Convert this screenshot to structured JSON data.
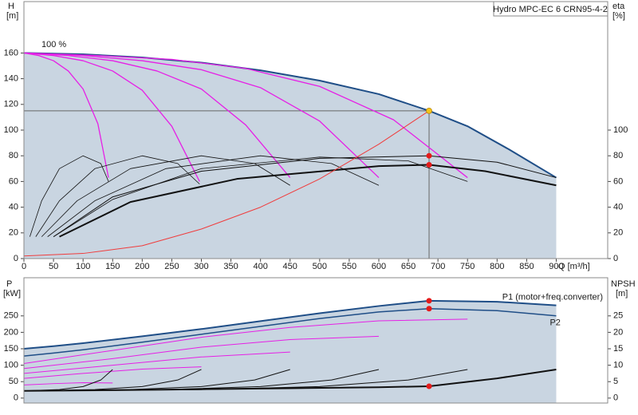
{
  "chart_data": [
    {
      "type": "line",
      "title": "Hydro MPC-EC 6 CRN95-4-2",
      "annotation": "100 %",
      "xlabel": "Q [m³/h]",
      "ylabel": "H",
      "yunit": "[m]",
      "y2label": "eta",
      "y2unit": "[%]",
      "xlim": [
        0,
        987
      ],
      "xticks": [
        0,
        50,
        100,
        150,
        200,
        250,
        300,
        350,
        400,
        450,
        500,
        550,
        600,
        650,
        700,
        750,
        800,
        850,
        900
      ],
      "ylim": [
        0,
        200
      ],
      "yticks": [
        0,
        20,
        40,
        60,
        80,
        100,
        120,
        140,
        160
      ],
      "y2lim": [
        0,
        200
      ],
      "y2ticks": [
        0,
        20,
        40,
        60,
        80,
        100
      ],
      "series": [
        {
          "x": [
            0,
            100,
            200,
            300,
            400,
            500,
            600,
            685,
            750,
            820,
            900
          ],
          "values": [
            160,
            159,
            156.5,
            152.5,
            146.5,
            138.5,
            128,
            115,
            103,
            85,
            63
          ],
          "color": "#1f4e87",
          "width": 2,
          "fill": "#c9d5e1"
        },
        {
          "x": [
            0,
            25,
            50,
            75,
            100,
            125,
            143
          ],
          "values": [
            160,
            158,
            154,
            146,
            132,
            105,
            63
          ],
          "color": "#e620e6",
          "width": 1.3
        },
        {
          "x": [
            0,
            50,
            100,
            150,
            200,
            250,
            297
          ],
          "values": [
            160,
            158,
            154,
            146,
            131,
            103,
            60
          ],
          "color": "#e620e6",
          "width": 1.3
        },
        {
          "x": [
            0,
            75,
            150,
            225,
            300,
            375,
            450
          ],
          "values": [
            160,
            158,
            154,
            146,
            132,
            104,
            63
          ],
          "color": "#e620e6",
          "width": 1.3
        },
        {
          "x": [
            0,
            100,
            200,
            300,
            400,
            500,
            600
          ],
          "values": [
            160,
            158,
            154,
            147,
            133,
            107,
            63
          ],
          "color": "#e620e6",
          "width": 1.3
        },
        {
          "x": [
            0,
            125,
            250,
            375,
            500,
            625,
            750
          ],
          "values": [
            160,
            158,
            155,
            148,
            134,
            108,
            63
          ],
          "color": "#e620e6",
          "width": 1.3
        },
        {
          "x": [
            10,
            30,
            60,
            100,
            130,
            143
          ],
          "values": [
            17,
            45,
            70,
            80,
            74,
            60
          ],
          "color": "#111111",
          "width": 0.8,
          "axis": "y2"
        },
        {
          "x": [
            20,
            60,
            120,
            200,
            260,
            297
          ],
          "values": [
            17,
            45,
            70,
            80,
            74,
            58
          ],
          "color": "#111111",
          "width": 0.8,
          "axis": "y2"
        },
        {
          "x": [
            30,
            90,
            180,
            300,
            390,
            450
          ],
          "values": [
            17,
            45,
            70,
            80,
            74,
            57
          ],
          "color": "#111111",
          "width": 0.8,
          "axis": "y2"
        },
        {
          "x": [
            40,
            120,
            240,
            400,
            520,
            600
          ],
          "values": [
            17,
            45,
            70,
            80,
            74,
            57
          ],
          "color": "#111111",
          "width": 0.8,
          "axis": "y2"
        },
        {
          "x": [
            50,
            150,
            300,
            500,
            650,
            750
          ],
          "values": [
            17,
            46,
            70,
            79,
            76,
            60
          ],
          "color": "#111111",
          "width": 0.8,
          "axis": "y2"
        },
        {
          "x": [
            50,
            150,
            300,
            500,
            685,
            800,
            900
          ],
          "values": [
            17,
            48,
            68,
            78,
            80,
            75,
            63
          ],
          "color": "#111111",
          "width": 1,
          "axis": "y2"
        },
        {
          "x": [
            60,
            180,
            360,
            600,
            685,
            780,
            900
          ],
          "values": [
            17,
            44,
            62,
            72,
            73,
            68,
            57
          ],
          "color": "#111111",
          "width": 2,
          "axis": "y2"
        },
        {
          "x": [
            0,
            100,
            200,
            300,
            400,
            500,
            600,
            685
          ],
          "values": [
            2,
            4,
            10,
            23,
            40,
            62,
            89,
            115
          ],
          "color": "#f03c3c",
          "width": 1
        },
        {
          "x": [
            685
          ],
          "values": [
            115
          ],
          "color": "#f5c518",
          "marker": true,
          "crosshair": true
        },
        {
          "x": [
            685,
            685
          ],
          "values": [
            80,
            73
          ],
          "color": "#e51a1a",
          "marker": true,
          "axis": "y2"
        }
      ]
    },
    {
      "type": "line",
      "ylabel": "P",
      "yunit": "[kW]",
      "y2label": "NPSH",
      "y2unit": "[m]",
      "xlim": [
        0,
        987
      ],
      "ylim": [
        -15,
        366
      ],
      "yticks": [
        0,
        50,
        100,
        150,
        200,
        250
      ],
      "y2lim": [
        -1.5,
        36.6
      ],
      "y2ticks": [
        0,
        5,
        10,
        15,
        20,
        25
      ],
      "series": [
        {
          "name": "P1 (motor+freq.converter)",
          "x": [
            0,
            50,
            100,
            200,
            300,
            400,
            500,
            600,
            685,
            800,
            900
          ],
          "values": [
            150,
            158,
            167,
            188,
            210,
            234,
            258,
            280,
            296,
            293,
            282
          ],
          "color": "#1f4e87",
          "width": 2,
          "fill": "#c9d5e1"
        },
        {
          "name": "P2",
          "x": [
            0,
            50,
            100,
            200,
            300,
            400,
            500,
            600,
            685,
            800,
            900
          ],
          "values": [
            128,
            137,
            147,
            170,
            194,
            218,
            242,
            262,
            272,
            266,
            250
          ],
          "color": "#1f4e87",
          "width": 1.5
        },
        {
          "x": [
            0,
            150,
            300,
            450,
            600,
            750
          ],
          "values": [
            105,
            145,
            185,
            215,
            235,
            240
          ],
          "color": "#e620e6",
          "width": 1
        },
        {
          "x": [
            0,
            150,
            300,
            450,
            600
          ],
          "values": [
            90,
            120,
            155,
            178,
            188
          ],
          "color": "#e620e6",
          "width": 1
        },
        {
          "x": [
            0,
            150,
            300,
            450
          ],
          "values": [
            75,
            100,
            125,
            140
          ],
          "color": "#e620e6",
          "width": 1
        },
        {
          "x": [
            0,
            100,
            200,
            300
          ],
          "values": [
            60,
            75,
            88,
            95
          ],
          "color": "#e620e6",
          "width": 1
        },
        {
          "x": [
            0,
            50,
            100,
            150
          ],
          "values": [
            40,
            44,
            47,
            46
          ],
          "color": "#e620e6",
          "width": 1
        },
        {
          "x": [
            0,
            60,
            100,
            130,
            150
          ],
          "values": [
            2.2,
            2.6,
            3.5,
            5.5,
            8.7
          ],
          "color": "#111111",
          "width": 1,
          "axis": "y2"
        },
        {
          "x": [
            0,
            120,
            200,
            260,
            300
          ],
          "values": [
            2.2,
            2.6,
            3.5,
            5.5,
            8.7
          ],
          "color": "#111111",
          "width": 1,
          "axis": "y2"
        },
        {
          "x": [
            0,
            180,
            300,
            390,
            450
          ],
          "values": [
            2.2,
            2.6,
            3.5,
            5.5,
            8.7
          ],
          "color": "#111111",
          "width": 1,
          "axis": "y2"
        },
        {
          "x": [
            0,
            240,
            400,
            520,
            600
          ],
          "values": [
            2.2,
            2.6,
            3.5,
            5.5,
            8.7
          ],
          "color": "#111111",
          "width": 1,
          "axis": "y2"
        },
        {
          "x": [
            0,
            300,
            500,
            650,
            750
          ],
          "values": [
            2.2,
            2.6,
            3.5,
            5.5,
            8.7
          ],
          "color": "#111111",
          "width": 1,
          "axis": "y2"
        },
        {
          "x": [
            0,
            150,
            300,
            450,
            600,
            685,
            800,
            900
          ],
          "values": [
            2.2,
            2.4,
            2.7,
            3.0,
            3.3,
            3.6,
            6.0,
            8.7
          ],
          "color": "#111111",
          "width": 2,
          "axis": "y2"
        },
        {
          "x": [
            685,
            685
          ],
          "values": [
            296,
            272
          ],
          "color": "#e51a1a",
          "marker": true
        },
        {
          "x": [
            685
          ],
          "values": [
            3.6
          ],
          "color": "#e51a1a",
          "marker": true,
          "axis": "y2"
        }
      ]
    }
  ]
}
